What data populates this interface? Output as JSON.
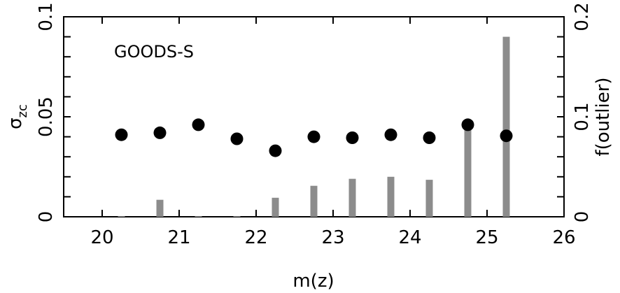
{
  "chart_data": {
    "type": "scatter",
    "title": "",
    "annotation": "GOODS-S",
    "xlabel": "m(z)",
    "ylabel_main": "σ",
    "ylabel_sub": "zc",
    "y2label": "f(outlier)",
    "xlim": [
      19.5,
      26.0
    ],
    "ylim": [
      0,
      0.1
    ],
    "y2lim": [
      0,
      0.2
    ],
    "x_ticks": [
      "20",
      "21",
      "22",
      "23",
      "24",
      "25",
      "26"
    ],
    "y_ticks": [
      "0",
      "0.05",
      "0.1"
    ],
    "y2_ticks": [
      "0",
      "0.1",
      "0.2"
    ],
    "grid": false,
    "series": [
      {
        "kind": "points",
        "axis": "left",
        "color": "#000000",
        "x": [
          20.25,
          20.75,
          21.25,
          21.75,
          22.25,
          22.75,
          23.25,
          23.75,
          24.25,
          24.75,
          25.25
        ],
        "values": [
          0.041,
          0.042,
          0.046,
          0.039,
          0.033,
          0.04,
          0.0395,
          0.041,
          0.0395,
          0.046,
          0.0405
        ]
      },
      {
        "kind": "bars",
        "axis": "right",
        "color": "#8c8c8c",
        "x": [
          20.25,
          20.75,
          21.25,
          21.75,
          22.25,
          22.75,
          23.25,
          23.75,
          24.25,
          24.75,
          25.25
        ],
        "values": [
          0.0005,
          0.017,
          0.0005,
          0.0005,
          0.019,
          0.031,
          0.038,
          0.04,
          0.037,
          0.093,
          0.18
        ]
      }
    ]
  }
}
